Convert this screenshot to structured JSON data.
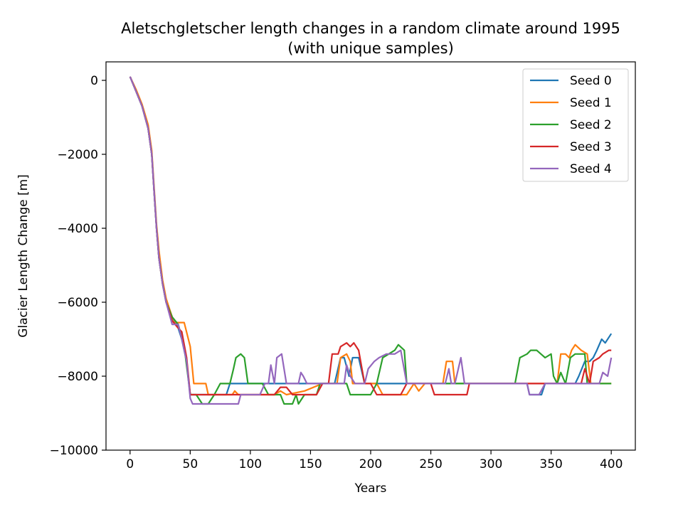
{
  "chart_data": {
    "type": "line",
    "title": "Aletschgletscher length changes in a random climate around 1995",
    "subtitle": "(with unique samples)",
    "xlabel": "Years",
    "ylabel": "Glacier Length Change [m]",
    "xlim": [
      -20,
      420
    ],
    "ylim": [
      -10000,
      500
    ],
    "xticks": [
      0,
      50,
      100,
      150,
      200,
      250,
      300,
      350,
      400
    ],
    "yticks": [
      0,
      -2000,
      -4000,
      -6000,
      -8000,
      -10000
    ],
    "xtick_labels": [
      "0",
      "50",
      "100",
      "150",
      "200",
      "250",
      "300",
      "350",
      "400"
    ],
    "ytick_labels": [
      "0",
      "−2000",
      "−4000",
      "−6000",
      "−8000",
      "−10000"
    ],
    "grid": false,
    "legend_position": "top-right",
    "series": [
      {
        "name": "Seed 0",
        "color": "#1f77b4",
        "points": [
          [
            0,
            100
          ],
          [
            5,
            -300
          ],
          [
            10,
            -700
          ],
          [
            15,
            -1300
          ],
          [
            18,
            -2000
          ],
          [
            20,
            -3000
          ],
          [
            22,
            -4000
          ],
          [
            24,
            -4800
          ],
          [
            27,
            -5500
          ],
          [
            30,
            -6000
          ],
          [
            35,
            -6400
          ],
          [
            40,
            -6700
          ],
          [
            43,
            -7000
          ],
          [
            47,
            -7600
          ],
          [
            50,
            -8500
          ],
          [
            60,
            -8500
          ],
          [
            70,
            -8500
          ],
          [
            80,
            -8500
          ],
          [
            83,
            -8200
          ],
          [
            110,
            -8200
          ],
          [
            130,
            -8200
          ],
          [
            170,
            -8200
          ],
          [
            175,
            -7500
          ],
          [
            178,
            -7500
          ],
          [
            182,
            -8000
          ],
          [
            185,
            -7500
          ],
          [
            190,
            -7500
          ],
          [
            195,
            -8200
          ],
          [
            240,
            -8200
          ],
          [
            330,
            -8200
          ],
          [
            332,
            -8500
          ],
          [
            338,
            -8500
          ],
          [
            342,
            -8500
          ],
          [
            345,
            -8200
          ],
          [
            370,
            -8200
          ],
          [
            373,
            -8000
          ],
          [
            378,
            -7600
          ],
          [
            382,
            -7600
          ],
          [
            385,
            -7500
          ],
          [
            388,
            -7300
          ],
          [
            392,
            -7000
          ],
          [
            395,
            -7100
          ],
          [
            400,
            -6850
          ]
        ]
      },
      {
        "name": "Seed 1",
        "color": "#ff7f0e",
        "points": [
          [
            0,
            100
          ],
          [
            5,
            -250
          ],
          [
            10,
            -650
          ],
          [
            15,
            -1200
          ],
          [
            18,
            -1900
          ],
          [
            20,
            -2900
          ],
          [
            22,
            -3900
          ],
          [
            24,
            -4600
          ],
          [
            27,
            -5400
          ],
          [
            30,
            -5900
          ],
          [
            35,
            -6400
          ],
          [
            38,
            -6550
          ],
          [
            45,
            -6550
          ],
          [
            50,
            -7200
          ],
          [
            53,
            -8200
          ],
          [
            63,
            -8200
          ],
          [
            65,
            -8500
          ],
          [
            85,
            -8500
          ],
          [
            87,
            -8400
          ],
          [
            90,
            -8500
          ],
          [
            110,
            -8500
          ],
          [
            120,
            -8500
          ],
          [
            125,
            -8400
          ],
          [
            130,
            -8500
          ],
          [
            145,
            -8400
          ],
          [
            160,
            -8200
          ],
          [
            172,
            -8200
          ],
          [
            175,
            -7500
          ],
          [
            180,
            -7400
          ],
          [
            183,
            -7600
          ],
          [
            185,
            -8200
          ],
          [
            205,
            -8200
          ],
          [
            210,
            -8500
          ],
          [
            230,
            -8500
          ],
          [
            236,
            -8200
          ],
          [
            240,
            -8400
          ],
          [
            245,
            -8200
          ],
          [
            260,
            -8200
          ],
          [
            263,
            -7600
          ],
          [
            268,
            -7600
          ],
          [
            270,
            -8200
          ],
          [
            355,
            -8200
          ],
          [
            358,
            -7400
          ],
          [
            362,
            -7400
          ],
          [
            365,
            -7500
          ],
          [
            367,
            -7300
          ],
          [
            370,
            -7150
          ],
          [
            375,
            -7300
          ],
          [
            380,
            -7400
          ],
          [
            383,
            -8200
          ],
          [
            400,
            -8200
          ]
        ]
      },
      {
        "name": "Seed 2",
        "color": "#2ca02c",
        "points": [
          [
            0,
            100
          ],
          [
            5,
            -300
          ],
          [
            10,
            -700
          ],
          [
            15,
            -1300
          ],
          [
            18,
            -2000
          ],
          [
            20,
            -3000
          ],
          [
            22,
            -4000
          ],
          [
            24,
            -4800
          ],
          [
            27,
            -5500
          ],
          [
            30,
            -6000
          ],
          [
            35,
            -6400
          ],
          [
            40,
            -6600
          ],
          [
            45,
            -7200
          ],
          [
            50,
            -8500
          ],
          [
            55,
            -8500
          ],
          [
            60,
            -8750
          ],
          [
            65,
            -8750
          ],
          [
            70,
            -8500
          ],
          [
            75,
            -8200
          ],
          [
            83,
            -8200
          ],
          [
            86,
            -7800
          ],
          [
            88,
            -7500
          ],
          [
            92,
            -7400
          ],
          [
            95,
            -7500
          ],
          [
            98,
            -8200
          ],
          [
            110,
            -8200
          ],
          [
            115,
            -8500
          ],
          [
            125,
            -8500
          ],
          [
            128,
            -8750
          ],
          [
            135,
            -8750
          ],
          [
            138,
            -8500
          ],
          [
            140,
            -8750
          ],
          [
            145,
            -8500
          ],
          [
            155,
            -8500
          ],
          [
            158,
            -8200
          ],
          [
            180,
            -8200
          ],
          [
            183,
            -8500
          ],
          [
            200,
            -8500
          ],
          [
            205,
            -8200
          ],
          [
            210,
            -7500
          ],
          [
            215,
            -7400
          ],
          [
            220,
            -7300
          ],
          [
            223,
            -7150
          ],
          [
            228,
            -7300
          ],
          [
            230,
            -8200
          ],
          [
            320,
            -8200
          ],
          [
            324,
            -7500
          ],
          [
            330,
            -7400
          ],
          [
            333,
            -7300
          ],
          [
            338,
            -7300
          ],
          [
            345,
            -7500
          ],
          [
            350,
            -7400
          ],
          [
            352,
            -8000
          ],
          [
            355,
            -8200
          ],
          [
            358,
            -7900
          ],
          [
            362,
            -8200
          ],
          [
            366,
            -7500
          ],
          [
            370,
            -7400
          ],
          [
            378,
            -7400
          ],
          [
            380,
            -8200
          ],
          [
            400,
            -8200
          ]
        ]
      },
      {
        "name": "Seed 3",
        "color": "#d62728",
        "points": [
          [
            0,
            100
          ],
          [
            5,
            -300
          ],
          [
            10,
            -700
          ],
          [
            15,
            -1300
          ],
          [
            18,
            -2000
          ],
          [
            20,
            -3000
          ],
          [
            22,
            -4000
          ],
          [
            24,
            -4800
          ],
          [
            27,
            -5500
          ],
          [
            30,
            -6000
          ],
          [
            35,
            -6500
          ],
          [
            40,
            -6700
          ],
          [
            43,
            -6800
          ],
          [
            47,
            -7500
          ],
          [
            50,
            -8500
          ],
          [
            80,
            -8500
          ],
          [
            110,
            -8500
          ],
          [
            120,
            -8500
          ],
          [
            125,
            -8300
          ],
          [
            130,
            -8300
          ],
          [
            135,
            -8500
          ],
          [
            155,
            -8500
          ],
          [
            160,
            -8200
          ],
          [
            165,
            -8200
          ],
          [
            168,
            -7400
          ],
          [
            173,
            -7400
          ],
          [
            175,
            -7200
          ],
          [
            180,
            -7100
          ],
          [
            183,
            -7200
          ],
          [
            186,
            -7100
          ],
          [
            190,
            -7300
          ],
          [
            195,
            -8200
          ],
          [
            200,
            -8200
          ],
          [
            205,
            -8500
          ],
          [
            225,
            -8500
          ],
          [
            230,
            -8200
          ],
          [
            250,
            -8200
          ],
          [
            253,
            -8500
          ],
          [
            280,
            -8500
          ],
          [
            282,
            -8200
          ],
          [
            340,
            -8200
          ],
          [
            345,
            -8200
          ],
          [
            370,
            -8200
          ],
          [
            375,
            -8200
          ],
          [
            378,
            -7800
          ],
          [
            382,
            -8200
          ],
          [
            385,
            -7600
          ],
          [
            390,
            -7500
          ],
          [
            393,
            -7400
          ],
          [
            398,
            -7300
          ],
          [
            400,
            -7300
          ]
        ]
      },
      {
        "name": "Seed 4",
        "color": "#9467bd",
        "points": [
          [
            0,
            100
          ],
          [
            5,
            -300
          ],
          [
            10,
            -700
          ],
          [
            15,
            -1300
          ],
          [
            18,
            -2000
          ],
          [
            20,
            -3000
          ],
          [
            22,
            -4000
          ],
          [
            24,
            -4800
          ],
          [
            27,
            -5500
          ],
          [
            30,
            -6000
          ],
          [
            35,
            -6600
          ],
          [
            40,
            -6600
          ],
          [
            43,
            -7000
          ],
          [
            47,
            -7600
          ],
          [
            50,
            -8600
          ],
          [
            52,
            -8750
          ],
          [
            90,
            -8750
          ],
          [
            92,
            -8500
          ],
          [
            108,
            -8500
          ],
          [
            112,
            -8200
          ],
          [
            115,
            -8200
          ],
          [
            117,
            -7700
          ],
          [
            120,
            -8200
          ],
          [
            122,
            -7500
          ],
          [
            126,
            -7400
          ],
          [
            130,
            -8200
          ],
          [
            140,
            -8200
          ],
          [
            142,
            -7900
          ],
          [
            144,
            -8000
          ],
          [
            147,
            -8200
          ],
          [
            165,
            -8200
          ],
          [
            178,
            -8200
          ],
          [
            180,
            -7700
          ],
          [
            183,
            -8000
          ],
          [
            187,
            -8200
          ],
          [
            195,
            -8200
          ],
          [
            198,
            -7800
          ],
          [
            203,
            -7600
          ],
          [
            207,
            -7500
          ],
          [
            213,
            -7400
          ],
          [
            220,
            -7400
          ],
          [
            225,
            -7300
          ],
          [
            230,
            -8200
          ],
          [
            262,
            -8200
          ],
          [
            265,
            -7800
          ],
          [
            267,
            -8200
          ],
          [
            270,
            -8200
          ],
          [
            275,
            -7500
          ],
          [
            278,
            -8200
          ],
          [
            330,
            -8200
          ],
          [
            332,
            -8500
          ],
          [
            340,
            -8500
          ],
          [
            345,
            -8200
          ],
          [
            390,
            -8200
          ],
          [
            393,
            -7900
          ],
          [
            397,
            -8000
          ],
          [
            400,
            -7500
          ]
        ]
      }
    ]
  }
}
